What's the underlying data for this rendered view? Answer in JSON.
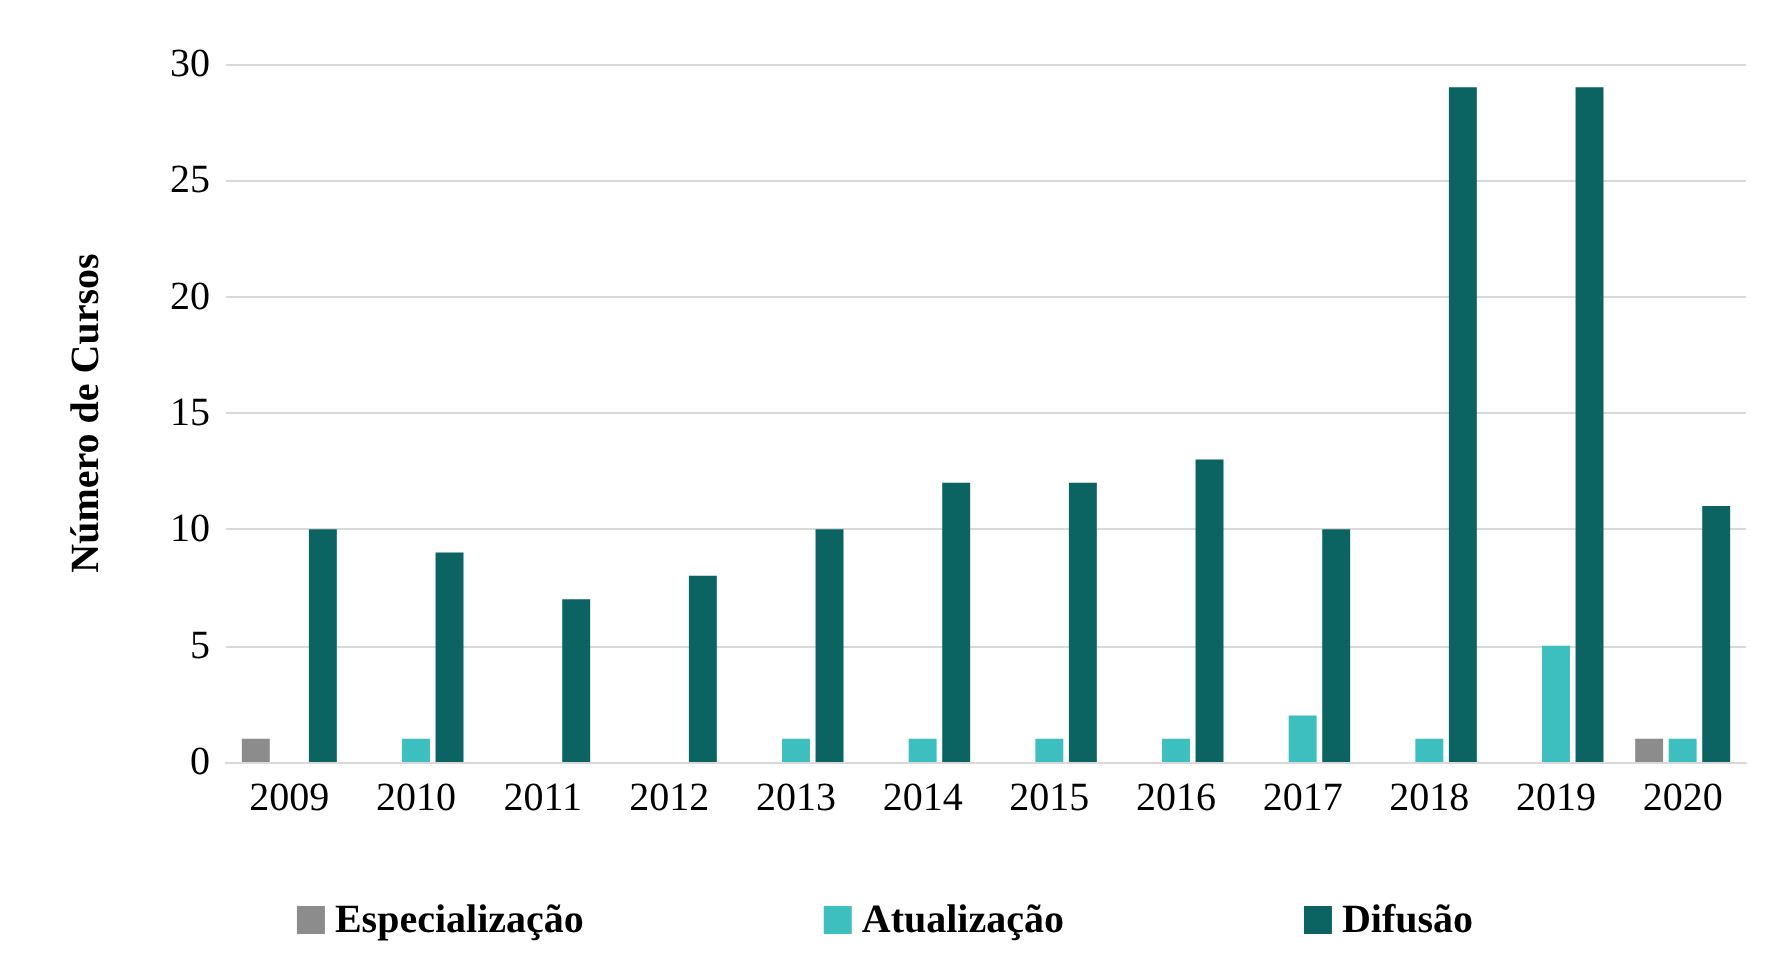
{
  "chart_data": {
    "type": "bar",
    "ylabel": "Número de Cursos",
    "categories": [
      "2009",
      "2010",
      "2011",
      "2012",
      "2013",
      "2014",
      "2015",
      "2016",
      "2017",
      "2018",
      "2019",
      "2020"
    ],
    "series": [
      {
        "name": "Especialização",
        "color": "#8c8c8c",
        "values": [
          1,
          0,
          0,
          0,
          0,
          0,
          0,
          0,
          0,
          0,
          0,
          1
        ]
      },
      {
        "name": "Atualização",
        "color": "#3dbfbf",
        "values": [
          0,
          1,
          0,
          0,
          1,
          1,
          1,
          1,
          2,
          1,
          5,
          1
        ]
      },
      {
        "name": "Difusão",
        "color": "#0b6461",
        "values": [
          10,
          9,
          7,
          8,
          10,
          12,
          12,
          13,
          10,
          29,
          29,
          11
        ]
      }
    ],
    "ylim": [
      0,
      30
    ],
    "yticks": [
      0,
      5,
      10,
      15,
      20,
      25,
      30
    ],
    "grid": "y",
    "legend": "bottom"
  }
}
